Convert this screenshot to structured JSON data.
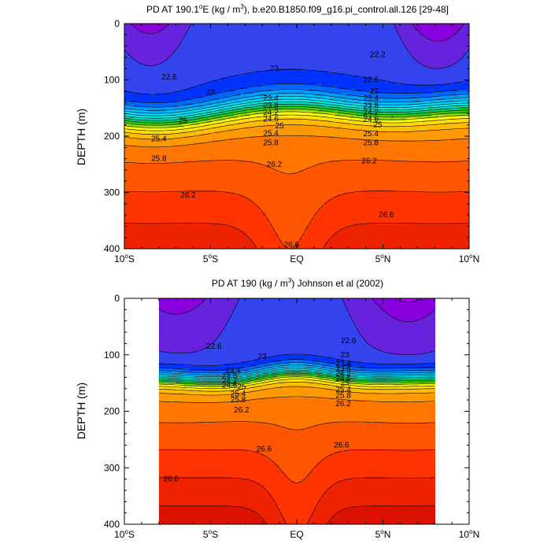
{
  "chart_data": [
    {
      "type": "contour",
      "title": "PD AT 190.1°E (kg / m³), b.e20.B1850.f09_g16.pi_control.all.126 [29-48]",
      "title_parts": {
        "a": "PD AT 190.1",
        "deg": "o",
        "b": "E (kg / m",
        "sup": "3",
        "c": "), b.e20.B1850.f09_g16.pi_control.all.126 [29-48]"
      },
      "ylabel": "DEPTH (m)",
      "xlim": [
        -10,
        10
      ],
      "ylim": [
        0,
        400
      ],
      "y_reversed": true,
      "y_ticks": [
        "0",
        "100",
        "200",
        "300",
        "400"
      ],
      "x_ticks": [
        {
          "deg": "10",
          "suf": "S"
        },
        {
          "deg": "5",
          "suf": "S"
        },
        {
          "deg": "",
          "suf": "EQ"
        },
        {
          "deg": "5",
          "suf": "N"
        },
        {
          "deg": "10",
          "suf": "N"
        }
      ],
      "data_xlim": [
        -10,
        10
      ],
      "levels": [
        21.6,
        21.8,
        22.0,
        22.2,
        22.4,
        22.6,
        22.8,
        23.0,
        23.2,
        23.4,
        23.6,
        23.8,
        24.0,
        24.2,
        24.4,
        24.6,
        24.8,
        25.0,
        25.2,
        25.4,
        25.6,
        25.8,
        26.0,
        26.2,
        26.4,
        26.6,
        26.8
      ],
      "level_colors": [
        "#cc00ff",
        "#aa00ee",
        "#8800dd",
        "#6622dd",
        "#3344ee",
        "#0033ff",
        "#0066ff",
        "#0099ff",
        "#00bbff",
        "#00ddff",
        "#00eeee",
        "#00ddbb",
        "#00cc66",
        "#33cc00",
        "#99dd00",
        "#ffff00",
        "#ffdd00",
        "#ffbb00",
        "#ff9900",
        "#ff7700",
        "#ff5500",
        "#ff3300",
        "#ee2200",
        "#dd1100",
        "#cc0000",
        "#bb0000"
      ],
      "contour_labels": [
        {
          "text": "22.2",
          "x": 4.7,
          "y": 55
        },
        {
          "text": "22.6",
          "x": -7.4,
          "y": 95
        },
        {
          "text": "22.6",
          "x": 4.3,
          "y": 100
        },
        {
          "text": "23",
          "x": -1.3,
          "y": 80
        },
        {
          "text": "23",
          "x": -5.0,
          "y": 122
        },
        {
          "text": "23",
          "x": 4.5,
          "y": 120
        },
        {
          "text": "23.4",
          "x": -1.5,
          "y": 133
        },
        {
          "text": "23.4",
          "x": 4.3,
          "y": 133
        },
        {
          "text": "23.8",
          "x": -1.5,
          "y": 146
        },
        {
          "text": "23.8",
          "x": 4.3,
          "y": 146
        },
        {
          "text": "24.2",
          "x": -1.5,
          "y": 158
        },
        {
          "text": "24.2",
          "x": 4.3,
          "y": 158
        },
        {
          "text": "24.6",
          "x": -1.5,
          "y": 170
        },
        {
          "text": "24.6",
          "x": 4.3,
          "y": 170
        },
        {
          "text": "25",
          "x": -6.6,
          "y": 173
        },
        {
          "text": "25",
          "x": 4.7,
          "y": 180
        },
        {
          "text": "25",
          "x": -1.0,
          "y": 182
        },
        {
          "text": "25.4",
          "x": -1.5,
          "y": 195
        },
        {
          "text": "25.4",
          "x": 4.3,
          "y": 196
        },
        {
          "text": "25.4",
          "x": -8.0,
          "y": 205
        },
        {
          "text": "25.8",
          "x": -1.5,
          "y": 212
        },
        {
          "text": "25.8",
          "x": 4.3,
          "y": 212
        },
        {
          "text": "25.8",
          "x": -8.0,
          "y": 240
        },
        {
          "text": "26.2",
          "x": -1.3,
          "y": 250
        },
        {
          "text": "26.2",
          "x": 4.2,
          "y": 244
        },
        {
          "text": "26.2",
          "x": -6.3,
          "y": 305
        },
        {
          "text": "26.6",
          "x": 5.2,
          "y": 340
        },
        {
          "text": "26.6",
          "x": -0.3,
          "y": 393
        }
      ]
    },
    {
      "type": "contour",
      "title": "PD AT 190 (kg / m³) Johnson et al (2002)",
      "title_parts": {
        "a": "PD AT 190 (kg / m",
        "deg": "",
        "b": "",
        "sup": "3",
        "c": ") Johnson et al (2002)"
      },
      "ylabel": "DEPTH (m)",
      "xlim": [
        -10,
        10
      ],
      "ylim": [
        0,
        400
      ],
      "y_reversed": true,
      "y_ticks": [
        "0",
        "100",
        "200",
        "300",
        "400"
      ],
      "x_ticks": [
        {
          "deg": "10",
          "suf": "S"
        },
        {
          "deg": "5",
          "suf": "S"
        },
        {
          "deg": "",
          "suf": "EQ"
        },
        {
          "deg": "5",
          "suf": "N"
        },
        {
          "deg": "10",
          "suf": "N"
        }
      ],
      "data_xlim": [
        -8,
        8
      ],
      "levels": [
        21.6,
        21.8,
        22.0,
        22.2,
        22.4,
        22.6,
        22.8,
        23.0,
        23.2,
        23.4,
        23.6,
        23.8,
        24.0,
        24.2,
        24.4,
        24.6,
        24.8,
        25.0,
        25.2,
        25.4,
        25.6,
        25.8,
        26.0,
        26.2,
        26.4,
        26.6,
        26.8
      ],
      "level_colors": [
        "#cc00ff",
        "#aa00ee",
        "#8800dd",
        "#6622dd",
        "#3344ee",
        "#0033ff",
        "#0066ff",
        "#0099ff",
        "#00bbff",
        "#00ddff",
        "#00eeee",
        "#00ddbb",
        "#00cc66",
        "#33cc00",
        "#99dd00",
        "#ffff00",
        "#ffdd00",
        "#ffbb00",
        "#ff9900",
        "#ff7700",
        "#ff5500",
        "#ff3300",
        "#ee2200",
        "#dd1100",
        "#cc0000",
        "#bb0000"
      ],
      "contour_labels": [
        {
          "text": "22.6",
          "x": -4.8,
          "y": 85
        },
        {
          "text": "22.6",
          "x": 3.0,
          "y": 75
        },
        {
          "text": "23",
          "x": -2.0,
          "y": 103
        },
        {
          "text": "23",
          "x": 2.8,
          "y": 100
        },
        {
          "text": "23.4",
          "x": -3.7,
          "y": 128
        },
        {
          "text": "23.4",
          "x": 2.7,
          "y": 116
        },
        {
          "text": "23.8",
          "x": -3.9,
          "y": 137
        },
        {
          "text": "23.8",
          "x": 2.7,
          "y": 125
        },
        {
          "text": "24.2",
          "x": -3.9,
          "y": 146
        },
        {
          "text": "24.2",
          "x": 2.7,
          "y": 133
        },
        {
          "text": "24.6",
          "x": -3.9,
          "y": 154
        },
        {
          "text": "24.6",
          "x": 2.7,
          "y": 142
        },
        {
          "text": "25",
          "x": -3.2,
          "y": 157
        },
        {
          "text": "25",
          "x": 2.8,
          "y": 150
        },
        {
          "text": "25.4",
          "x": -3.4,
          "y": 169
        },
        {
          "text": "25.4",
          "x": 2.7,
          "y": 162
        },
        {
          "text": "25.8",
          "x": -3.4,
          "y": 180
        },
        {
          "text": "25.8",
          "x": 2.7,
          "y": 172
        },
        {
          "text": "26.2",
          "x": -3.2,
          "y": 198
        },
        {
          "text": "26.2",
          "x": 2.7,
          "y": 187
        },
        {
          "text": "26.6",
          "x": -1.9,
          "y": 267
        },
        {
          "text": "26.6",
          "x": 2.6,
          "y": 260
        },
        {
          "text": "26.6",
          "x": -7.3,
          "y": 320
        }
      ]
    }
  ]
}
